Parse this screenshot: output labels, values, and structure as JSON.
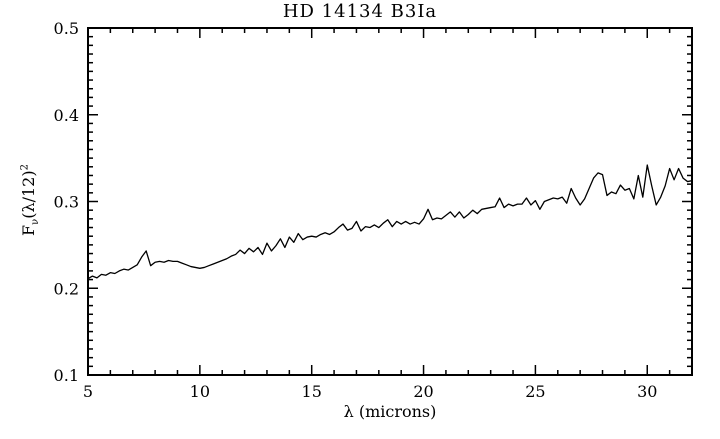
{
  "chart_data": {
    "type": "line",
    "title": "HD 14134 B3Ia",
    "xlabel": "λ (microns)",
    "ylabel": "Fν(λ/12)²",
    "ylabel_parts": {
      "base": "F",
      "sub": "ν",
      "mid": "(λ/12)",
      "sup": "2"
    },
    "xlim": [
      5,
      32
    ],
    "ylim": [
      0.1,
      0.5
    ],
    "x_major_ticks": [
      5,
      10,
      15,
      20,
      25,
      30
    ],
    "x_tick_labels": [
      "5",
      "10",
      "15",
      "20",
      "25",
      "30"
    ],
    "x_minor_step": 1,
    "y_major_ticks": [
      0.1,
      0.2,
      0.3,
      0.4,
      0.5
    ],
    "y_tick_labels": [
      "0.1",
      "0.2",
      "0.3",
      "0.4",
      "0.5"
    ],
    "y_minor_step": 0.01,
    "grid": false,
    "legend": "none",
    "line_color": "#000000",
    "background": "#ffffff",
    "series": [
      {
        "name": "HD 14134",
        "x": [
          5.0,
          5.2,
          5.4,
          5.6,
          5.8,
          6.0,
          6.2,
          6.4,
          6.6,
          6.8,
          7.0,
          7.2,
          7.4,
          7.6,
          7.8,
          8.0,
          8.2,
          8.4,
          8.6,
          8.8,
          9.0,
          9.2,
          9.4,
          9.6,
          9.8,
          10.0,
          10.2,
          10.4,
          10.6,
          10.8,
          11.0,
          11.2,
          11.4,
          11.6,
          11.8,
          12.0,
          12.2,
          12.4,
          12.6,
          12.8,
          13.0,
          13.2,
          13.4,
          13.6,
          13.8,
          14.0,
          14.2,
          14.4,
          14.6,
          14.8,
          15.0,
          15.2,
          15.4,
          15.6,
          15.8,
          16.0,
          16.2,
          16.4,
          16.6,
          16.8,
          17.0,
          17.2,
          17.4,
          17.6,
          17.8,
          18.0,
          18.2,
          18.4,
          18.6,
          18.8,
          19.0,
          19.2,
          19.4,
          19.6,
          19.8,
          20.0,
          20.2,
          20.4,
          20.6,
          20.8,
          21.0,
          21.2,
          21.4,
          21.6,
          21.8,
          22.0,
          22.2,
          22.4,
          22.6,
          22.8,
          23.0,
          23.2,
          23.4,
          23.6,
          23.8,
          24.0,
          24.2,
          24.4,
          24.6,
          24.8,
          25.0,
          25.2,
          25.4,
          25.6,
          25.8,
          26.0,
          26.2,
          26.4,
          26.6,
          26.8,
          27.0,
          27.2,
          27.4,
          27.6,
          27.8,
          28.0,
          28.2,
          28.4,
          28.6,
          28.8,
          29.0,
          29.2,
          29.4,
          29.6,
          29.8,
          30.0,
          30.2,
          30.4,
          30.6,
          30.8,
          31.0,
          31.2,
          31.4,
          31.6,
          31.8,
          32.0
        ],
        "y": [
          0.211,
          0.214,
          0.212,
          0.216,
          0.215,
          0.218,
          0.217,
          0.22,
          0.222,
          0.221,
          0.224,
          0.227,
          0.236,
          0.243,
          0.226,
          0.23,
          0.231,
          0.23,
          0.232,
          0.231,
          0.231,
          0.229,
          0.227,
          0.225,
          0.224,
          0.223,
          0.224,
          0.226,
          0.228,
          0.23,
          0.232,
          0.234,
          0.237,
          0.239,
          0.244,
          0.24,
          0.246,
          0.242,
          0.247,
          0.239,
          0.252,
          0.243,
          0.249,
          0.257,
          0.247,
          0.259,
          0.253,
          0.263,
          0.256,
          0.259,
          0.26,
          0.259,
          0.262,
          0.264,
          0.262,
          0.265,
          0.27,
          0.274,
          0.267,
          0.269,
          0.277,
          0.266,
          0.271,
          0.27,
          0.273,
          0.27,
          0.275,
          0.279,
          0.271,
          0.277,
          0.274,
          0.277,
          0.274,
          0.276,
          0.274,
          0.28,
          0.291,
          0.279,
          0.281,
          0.28,
          0.284,
          0.288,
          0.282,
          0.288,
          0.281,
          0.285,
          0.29,
          0.286,
          0.291,
          0.292,
          0.293,
          0.294,
          0.304,
          0.293,
          0.297,
          0.295,
          0.297,
          0.297,
          0.304,
          0.296,
          0.301,
          0.291,
          0.3,
          0.302,
          0.304,
          0.303,
          0.305,
          0.298,
          0.315,
          0.304,
          0.296,
          0.303,
          0.315,
          0.327,
          0.333,
          0.331,
          0.307,
          0.311,
          0.309,
          0.319,
          0.313,
          0.315,
          0.303,
          0.33,
          0.305,
          0.342,
          0.318,
          0.296,
          0.305,
          0.318,
          0.338,
          0.325,
          0.338,
          0.327,
          0.323,
          0.324
        ]
      }
    ]
  }
}
